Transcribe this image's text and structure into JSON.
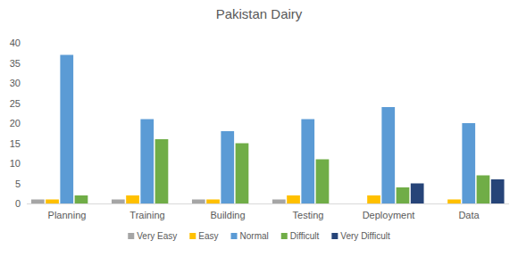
{
  "chart_data": {
    "type": "bar",
    "title": "Pakistan Dairy",
    "categories": [
      "Planning",
      "Training",
      "Building",
      "Testing",
      "Deployment",
      "Data"
    ],
    "series": [
      {
        "name": "Very Easy",
        "color": "#a5a5a5",
        "values": [
          1,
          1,
          1,
          1,
          0,
          0
        ]
      },
      {
        "name": "Easy",
        "color": "#ffc000",
        "values": [
          1,
          2,
          1,
          2,
          2,
          1
        ]
      },
      {
        "name": "Normal",
        "color": "#5b9bd5",
        "values": [
          37,
          21,
          18,
          21,
          24,
          20
        ]
      },
      {
        "name": "Difficult",
        "color": "#70ad47",
        "values": [
          2,
          16,
          15,
          11,
          4,
          7
        ]
      },
      {
        "name": "Very Difficult",
        "color": "#264478",
        "values": [
          0,
          0,
          0,
          0,
          5,
          6
        ]
      }
    ],
    "ylim": [
      0,
      40
    ],
    "yticks": [
      0,
      5,
      10,
      15,
      20,
      25,
      30,
      35,
      40
    ],
    "grid": false,
    "legend": "bottom"
  }
}
